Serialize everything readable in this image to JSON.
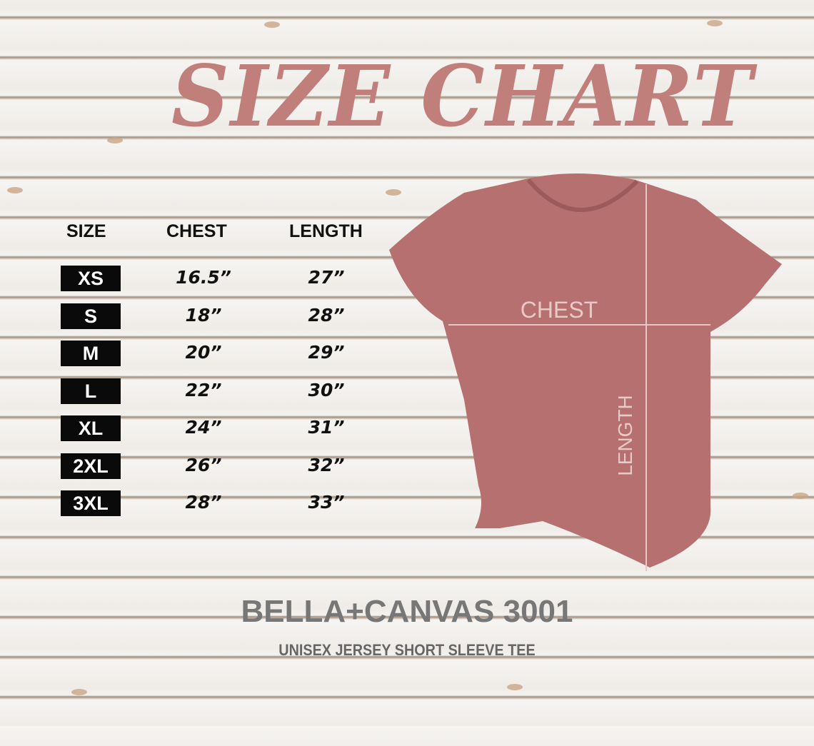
{
  "title": "SIZE CHART",
  "table": {
    "headers": [
      "SIZE",
      "CHEST",
      "LENGTH"
    ],
    "rows": [
      {
        "size": "XS",
        "chest": "16.5”",
        "length": "27”"
      },
      {
        "size": "S",
        "chest": "18”",
        "length": "28”"
      },
      {
        "size": "M",
        "chest": "20”",
        "length": "29”"
      },
      {
        "size": "L",
        "chest": "22”",
        "length": "30”"
      },
      {
        "size": "XL",
        "chest": "24”",
        "length": "31”"
      },
      {
        "size": "2XL",
        "chest": "26”",
        "length": "32”"
      },
      {
        "size": "3XL",
        "chest": "28”",
        "length": "33”"
      }
    ]
  },
  "shirt": {
    "chest_label": "CHEST",
    "length_label": "LENGTH",
    "color": "#b5706f"
  },
  "brand": "BELLA+CANVAS 3001",
  "subtitle": "UNISEX JERSEY SHORT SLEEVE TEE",
  "colors": {
    "title": "#c07f7b",
    "badge": "#0a0a0a"
  }
}
